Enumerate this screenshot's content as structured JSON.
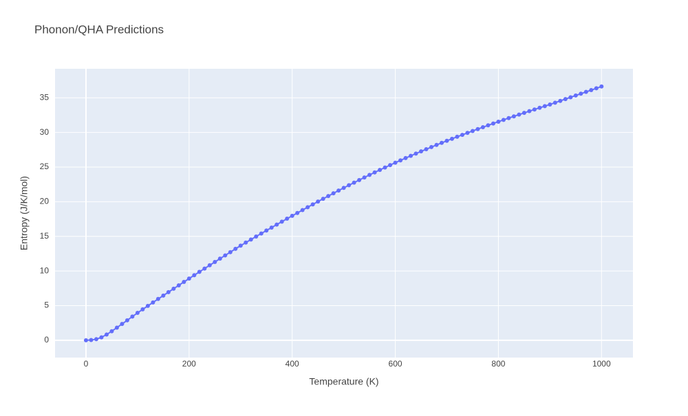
{
  "chart_data": {
    "type": "line",
    "title": "Phonon/QHA Predictions",
    "x_label": "Temperature (K)",
    "y_label": "Entropy (J/K/mol)",
    "x": [
      0,
      10,
      20,
      30,
      40,
      50,
      60,
      70,
      80,
      90,
      100,
      110,
      120,
      130,
      140,
      150,
      160,
      170,
      180,
      190,
      200,
      210,
      220,
      230,
      240,
      250,
      260,
      270,
      280,
      290,
      300,
      310,
      320,
      330,
      340,
      350,
      360,
      370,
      380,
      390,
      400,
      410,
      420,
      430,
      440,
      450,
      460,
      470,
      480,
      490,
      500,
      510,
      520,
      530,
      540,
      550,
      560,
      570,
      580,
      590,
      600,
      610,
      620,
      630,
      640,
      650,
      660,
      670,
      680,
      690,
      700,
      710,
      720,
      730,
      740,
      750,
      760,
      770,
      780,
      790,
      800,
      810,
      820,
      830,
      840,
      850,
      860,
      870,
      880,
      890,
      900,
      910,
      920,
      930,
      940,
      950,
      960,
      970,
      980,
      990,
      1000
    ],
    "series": [
      {
        "color": "#636efa",
        "values": [
          0,
          0.03,
          0.15,
          0.42,
          0.82,
          1.3,
          1.82,
          2.35,
          2.88,
          3.42,
          3.95,
          4.46,
          4.96,
          5.46,
          5.96,
          6.45,
          6.95,
          7.44,
          7.93,
          8.42,
          8.9,
          9.39,
          9.87,
          10.35,
          10.83,
          11.3,
          11.78,
          12.25,
          12.72,
          13.2,
          13.66,
          14.1,
          14.54,
          14.98,
          15.41,
          15.84,
          16.27,
          16.7,
          17.12,
          17.55,
          17.97,
          18.38,
          18.8,
          19.21,
          19.62,
          20.02,
          20.42,
          20.82,
          21.22,
          21.61,
          22.0,
          22.38,
          22.76,
          23.13,
          23.5,
          23.87,
          24.23,
          24.59,
          24.94,
          25.29,
          25.64,
          25.97,
          26.3,
          26.63,
          26.95,
          27.27,
          27.58,
          27.89,
          28.2,
          28.5,
          28.8,
          29.09,
          29.38,
          29.66,
          29.94,
          30.22,
          30.49,
          30.76,
          31.03,
          31.3,
          31.56,
          31.82,
          32.08,
          32.33,
          32.58,
          32.83,
          33.08,
          33.32,
          33.56,
          33.8,
          34.04,
          34.3,
          34.56,
          34.82,
          35.08,
          35.34,
          35.6,
          35.86,
          36.12,
          36.38,
          36.64
        ]
      }
    ],
    "xlim": [
      -60,
      1061
    ],
    "ylim": [
      -2.5,
      39.2
    ],
    "xticks": [
      0,
      200,
      400,
      600,
      800,
      1000
    ],
    "yticks": [
      0,
      5,
      10,
      15,
      20,
      25,
      30,
      35
    ],
    "grid": true,
    "plot_bgcolor": "#e5ecf6"
  }
}
